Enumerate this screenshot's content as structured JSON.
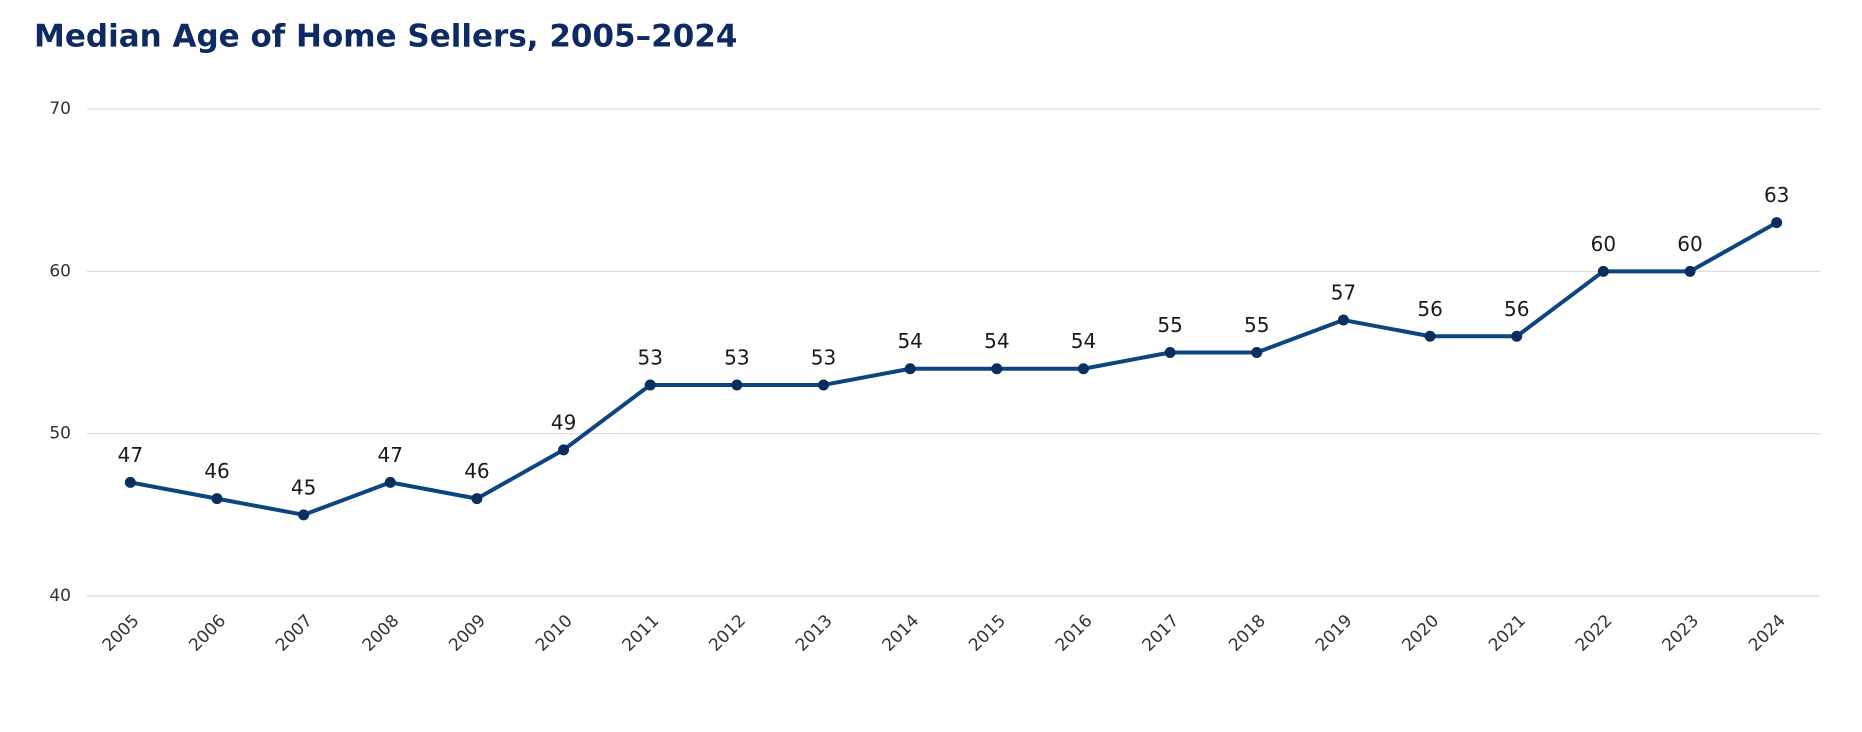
{
  "chart_data": {
    "type": "line",
    "title": "Median Age of Home Sellers, 2005–2024",
    "categories": [
      "2005",
      "2006",
      "2007",
      "2008",
      "2009",
      "2010",
      "2011",
      "2012",
      "2013",
      "2014",
      "2015",
      "2016",
      "2017",
      "2018",
      "2019",
      "2020",
      "2021",
      "2022",
      "2023",
      "2024"
    ],
    "values": [
      47,
      46,
      45,
      47,
      46,
      49,
      53,
      53,
      53,
      54,
      54,
      54,
      55,
      55,
      57,
      56,
      56,
      60,
      60,
      63
    ],
    "color": "#0d4580",
    "ylim": [
      40,
      70
    ],
    "yticks": [
      40,
      50,
      60,
      70
    ],
    "grid": true
  }
}
